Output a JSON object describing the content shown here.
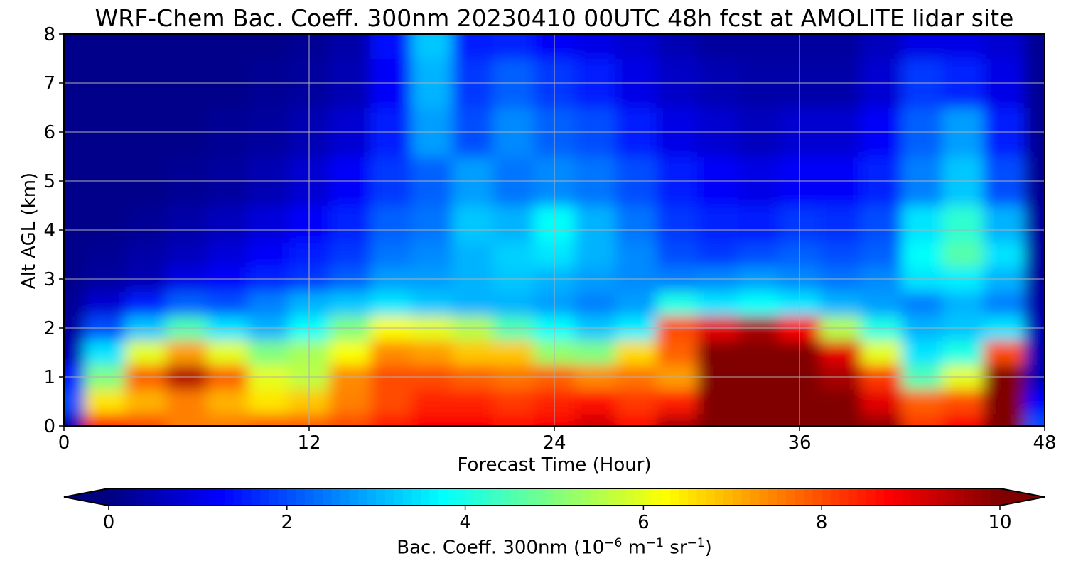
{
  "chart_data": {
    "type": "heatmap",
    "title": "WRF-Chem Bac. Coeff. 300nm  20230410 00UTC 48h fcst at AMOLITE lidar site",
    "xlabel": "Forecast Time (Hour)",
    "ylabel": "Alt AGL (km)",
    "xlim": [
      0,
      48
    ],
    "ylim": [
      0,
      8
    ],
    "x_ticks": [
      0,
      12,
      24,
      36,
      48
    ],
    "y_ticks": [
      0,
      1,
      2,
      3,
      4,
      5,
      6,
      7,
      8
    ],
    "grid": true,
    "colormap": "jet",
    "colorbar": {
      "orientation": "horizontal",
      "position": "bottom",
      "range": [
        0,
        10
      ],
      "ticks": [
        0,
        2,
        4,
        6,
        8,
        10
      ],
      "extend": "both",
      "label_main": "Bac. Coeff. 300nm  (10",
      "label_exp1": "−6",
      "label_mid": " m",
      "label_exp2": "−1",
      "label_mid2": " sr",
      "label_exp3": "−1",
      "label_end": ")"
    },
    "z_alt_km": [
      0.0,
      0.5,
      1.0,
      1.5,
      2.0,
      2.5,
      3.0,
      3.5,
      4.0,
      5.0,
      6.0,
      7.0,
      8.0
    ],
    "z_time_h": [
      0,
      2,
      4,
      6,
      8,
      10,
      12,
      14,
      16,
      18,
      20,
      22,
      24,
      26,
      28,
      30,
      32,
      34,
      36,
      38,
      40,
      42,
      44,
      46,
      48
    ],
    "z_values": [
      [
        0.5,
        8.5,
        8.0,
        7.5,
        7.5,
        7.8,
        7.8,
        8.0,
        8.5,
        8.8,
        8.8,
        8.6,
        8.8,
        9.2,
        8.6,
        9.5,
        10.0,
        10.0,
        10.0,
        10.0,
        9.8,
        8.2,
        8.8,
        10.0,
        2.0
      ],
      [
        2.0,
        6.5,
        7.0,
        7.5,
        7.0,
        6.5,
        6.8,
        7.5,
        8.0,
        8.4,
        8.4,
        8.2,
        8.4,
        8.6,
        8.2,
        8.5,
        10.0,
        10.0,
        10.0,
        10.0,
        9.0,
        7.8,
        8.0,
        10.0,
        1.2
      ],
      [
        1.5,
        5.0,
        7.8,
        9.5,
        7.8,
        6.0,
        5.6,
        7.4,
        8.0,
        8.0,
        7.8,
        7.6,
        7.8,
        7.4,
        7.6,
        7.2,
        10.0,
        10.0,
        10.0,
        9.6,
        8.2,
        4.5,
        6.0,
        10.0,
        0.5
      ],
      [
        0.5,
        3.5,
        6.0,
        7.2,
        6.0,
        5.0,
        5.4,
        6.2,
        7.4,
        7.2,
        6.8,
        6.8,
        5.2,
        5.0,
        6.6,
        7.8,
        10.0,
        10.0,
        10.0,
        9.0,
        6.0,
        3.5,
        4.0,
        8.0,
        0.5
      ],
      [
        0.3,
        2.0,
        3.2,
        4.5,
        3.5,
        3.0,
        3.8,
        5.0,
        6.2,
        6.0,
        5.5,
        4.5,
        3.8,
        3.2,
        3.6,
        8.0,
        9.0,
        9.6,
        8.8,
        5.5,
        4.0,
        3.0,
        3.2,
        3.5,
        0.5
      ],
      [
        0.2,
        0.8,
        1.5,
        2.2,
        2.0,
        2.5,
        3.0,
        3.2,
        3.5,
        3.2,
        3.0,
        3.0,
        2.8,
        2.5,
        2.8,
        4.0,
        3.5,
        3.8,
        3.5,
        3.0,
        2.8,
        2.5,
        3.0,
        2.5,
        0.4
      ],
      [
        0.1,
        0.3,
        0.5,
        1.0,
        1.2,
        1.6,
        1.8,
        2.2,
        2.8,
        2.8,
        3.0,
        3.2,
        3.0,
        2.8,
        2.6,
        2.5,
        2.6,
        2.8,
        2.6,
        2.4,
        2.6,
        3.5,
        3.6,
        3.0,
        0.3
      ],
      [
        0.1,
        0.2,
        0.4,
        0.6,
        0.9,
        1.2,
        1.5,
        1.8,
        2.4,
        2.6,
        3.0,
        3.3,
        3.5,
        3.0,
        2.6,
        2.0,
        1.8,
        2.0,
        2.2,
        2.0,
        2.2,
        3.8,
        4.6,
        3.5,
        0.3
      ],
      [
        0.1,
        0.1,
        0.2,
        0.4,
        0.6,
        0.9,
        1.2,
        1.6,
        2.2,
        2.4,
        3.2,
        3.0,
        3.8,
        3.0,
        2.4,
        1.8,
        1.6,
        1.5,
        1.8,
        1.7,
        2.0,
        3.5,
        4.2,
        3.0,
        0.3
      ],
      [
        0.1,
        0.1,
        0.1,
        0.2,
        0.3,
        0.5,
        0.8,
        1.2,
        1.8,
        2.2,
        2.8,
        2.4,
        2.6,
        2.4,
        2.0,
        1.5,
        1.2,
        1.0,
        1.2,
        1.2,
        1.6,
        2.5,
        3.2,
        2.0,
        0.2
      ],
      [
        0.1,
        0.1,
        0.1,
        0.1,
        0.2,
        0.3,
        0.5,
        0.8,
        1.5,
        2.8,
        2.0,
        2.6,
        2.2,
        2.0,
        1.5,
        1.0,
        0.8,
        0.6,
        0.8,
        0.8,
        1.2,
        2.2,
        2.8,
        1.5,
        0.2
      ],
      [
        0.1,
        0.1,
        0.1,
        0.1,
        0.1,
        0.2,
        0.3,
        0.5,
        1.2,
        3.0,
        1.8,
        2.2,
        1.8,
        1.5,
        1.0,
        0.7,
        0.5,
        0.4,
        0.4,
        0.4,
        0.8,
        1.8,
        1.6,
        1.0,
        0.2
      ],
      [
        0.1,
        0.1,
        0.1,
        0.1,
        0.1,
        0.1,
        0.2,
        0.4,
        1.4,
        3.2,
        1.5,
        1.6,
        1.2,
        1.0,
        0.8,
        0.5,
        0.3,
        0.3,
        0.3,
        0.3,
        0.6,
        1.0,
        1.0,
        0.8,
        0.2
      ]
    ]
  }
}
